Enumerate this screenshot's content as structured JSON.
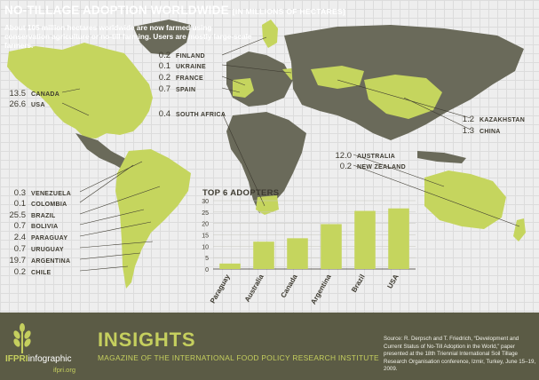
{
  "title": "NO-TILLAGE ADOPTION WORLDWIDE",
  "title_unit": "[IN MILLIONS OF HECTARES]",
  "intro": "About 105 million hectares worldwide are now farmed using conservation agriculture or no-till farming. Users are mostly large-scale farmers.",
  "colors": {
    "adopter": "#c5d55e",
    "land": "#6a6a5a",
    "ocean": "#eeeeee",
    "text": "#3d3a30",
    "footer": "#5b5b45"
  },
  "countries": [
    {
      "value": "0.2",
      "name": "FINLAND"
    },
    {
      "value": "0.1",
      "name": "UKRAINE"
    },
    {
      "value": "0.2",
      "name": "FRANCE"
    },
    {
      "value": "0.7",
      "name": "SPAIN"
    },
    {
      "value": "13.5",
      "name": "CANADA"
    },
    {
      "value": "26.6",
      "name": "USA"
    },
    {
      "value": "0.4",
      "name": "SOUTH AFRICA"
    },
    {
      "value": "1.2",
      "name": "KAZAKHSTAN"
    },
    {
      "value": "1.3",
      "name": "CHINA"
    },
    {
      "value": "12.0",
      "name": "AUSTRALIA"
    },
    {
      "value": "0.2",
      "name": "NEW ZEALAND"
    },
    {
      "value": "0.3",
      "name": "VENEZUELA"
    },
    {
      "value": "0.1",
      "name": "COLOMBIA"
    },
    {
      "value": "25.5",
      "name": "BRAZIL"
    },
    {
      "value": "0.7",
      "name": "BOLIVIA"
    },
    {
      "value": "2.4",
      "name": "PARAGUAY"
    },
    {
      "value": "0.7",
      "name": "URUGUAY"
    },
    {
      "value": "19.7",
      "name": "ARGENTINA"
    },
    {
      "value": "0.2",
      "name": "CHILE"
    }
  ],
  "chart_data": {
    "type": "bar",
    "title": "TOP 6 ADOPTERS",
    "categories": [
      "Paraguay",
      "Australia",
      "Canada",
      "Argentina",
      "Brazil",
      "USA"
    ],
    "values": [
      2.4,
      12.0,
      13.5,
      19.7,
      25.5,
      26.6
    ],
    "ylim": [
      0,
      30
    ],
    "yticks": [
      0,
      5,
      10,
      15,
      20,
      25,
      30
    ],
    "grid": true,
    "color": "#c5d55e"
  },
  "footer": {
    "insights": "INSIGHTS",
    "magazine": "MAGAZINE OF THE INTERNATIONAL FOOD POLICY RESEARCH INSTITUTE",
    "brand_a": "IFPRI",
    "brand_b": "infographic",
    "site": "ifpri.org",
    "source": "Source: R. Derpsch and T. Friedrich, “Development and Current Status of No-Till Adoption in the World,” paper presented at the 18th Triennial International Soil Tillage Research Organisation conference, Izmir, Turkey, June 15–19, 2009."
  }
}
